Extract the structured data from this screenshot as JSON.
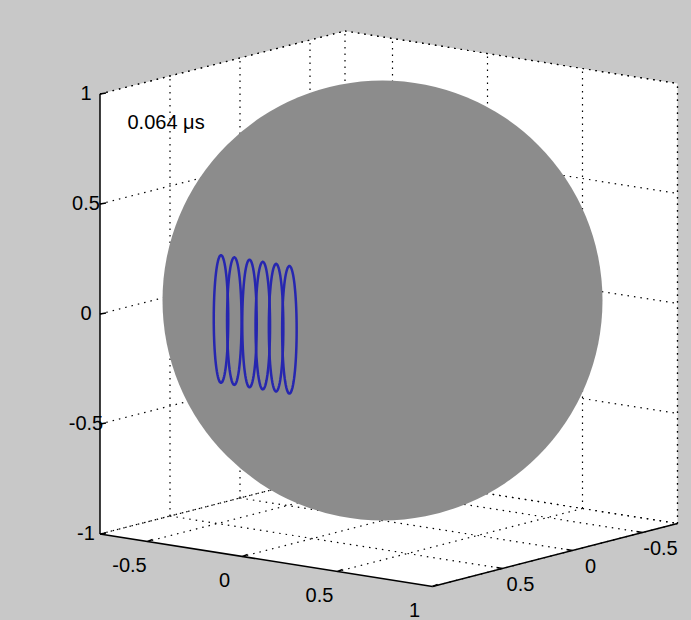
{
  "chart_data": {
    "type": "3d",
    "annotation": "0.064 μs",
    "xlim": [
      -0.75,
      1
    ],
    "ylim": [
      -0.75,
      1
    ],
    "zlim": [
      -1,
      1
    ],
    "xticks": [
      -0.5,
      0,
      0.5,
      1
    ],
    "yticks": [
      -0.5,
      0,
      0.5
    ],
    "zticks": [
      -1,
      -0.5,
      0,
      0.5,
      1
    ],
    "grid": true,
    "sphere": {
      "center": [
        0,
        0,
        0
      ],
      "radius": 1,
      "color": "#8c8c8c"
    },
    "wavefronts": {
      "color": "#2626b0",
      "radius": 0.29,
      "y": 0,
      "z": -0.2,
      "x": [
        -0.85,
        -0.78,
        -0.7,
        -0.63,
        -0.56,
        -0.49
      ]
    }
  }
}
